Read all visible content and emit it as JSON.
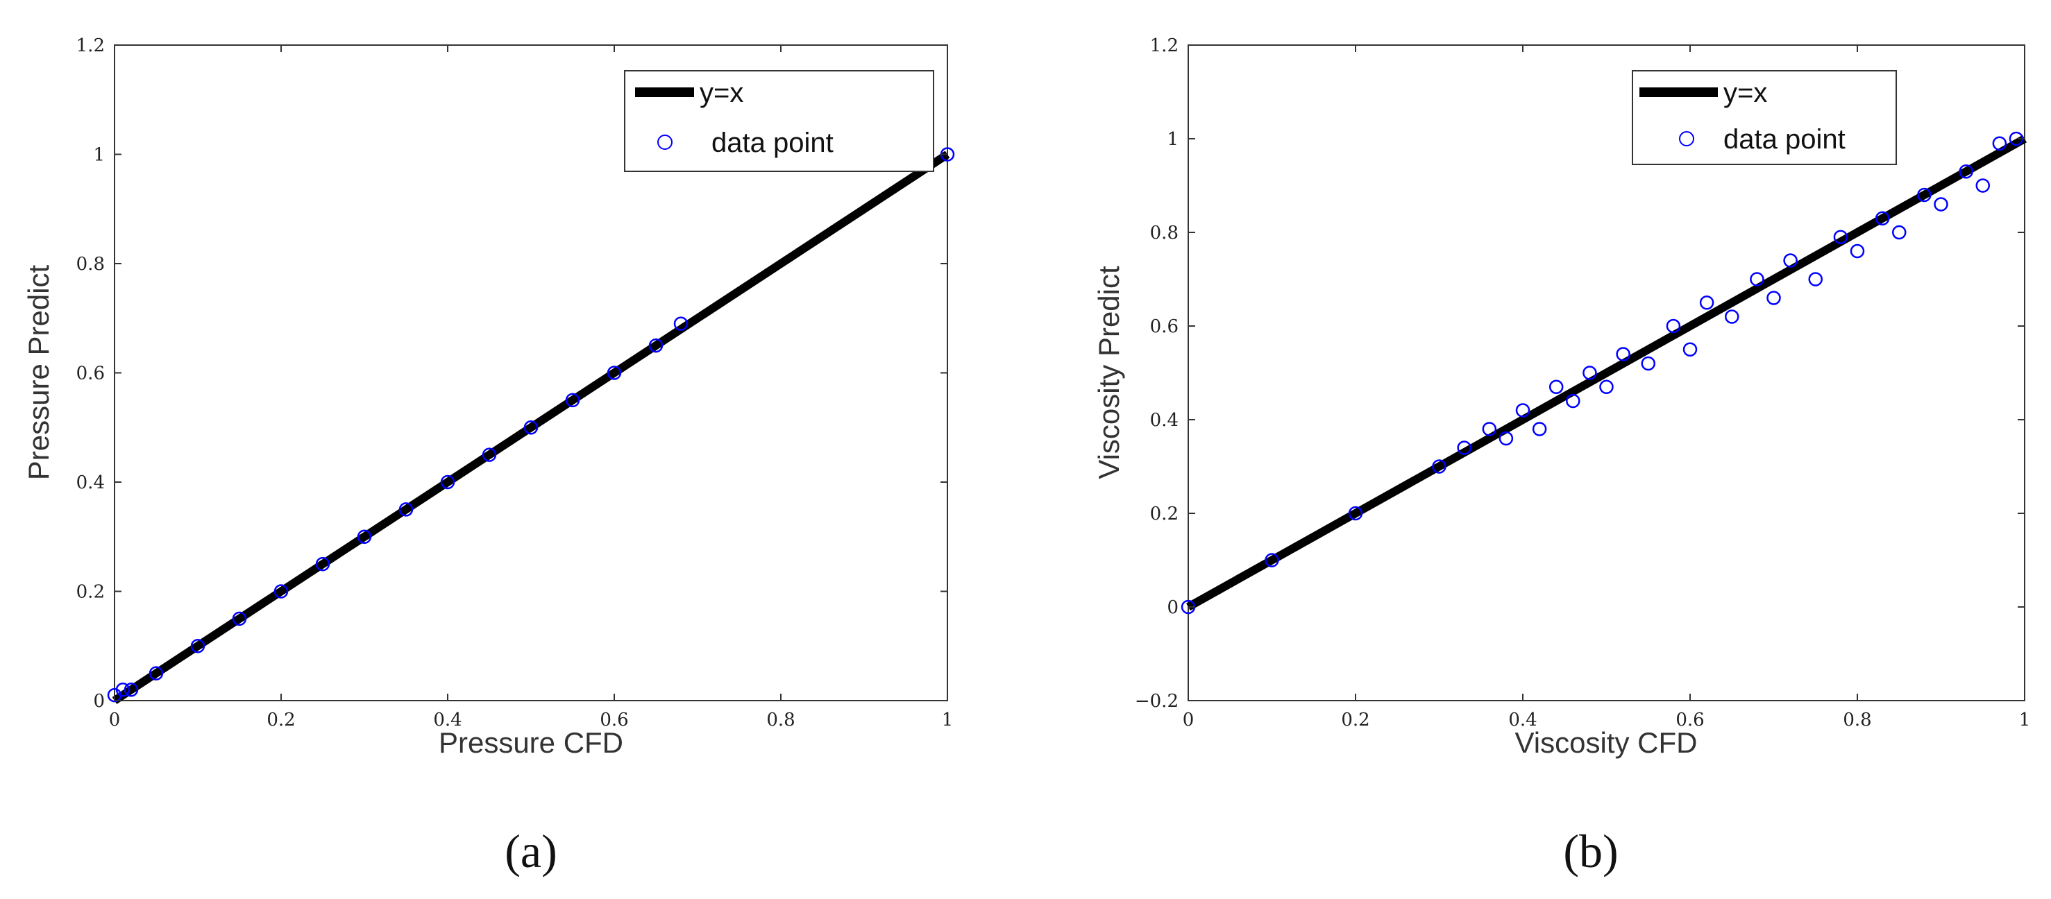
{
  "chart_data": [
    {
      "type": "scatter",
      "panel_label": "(a)",
      "xlabel": "Pressure CFD",
      "ylabel": "Pressure Predict",
      "xlim": [
        0,
        1
      ],
      "ylim": [
        0,
        1.2
      ],
      "xticks": [
        0,
        0.2,
        0.4,
        0.6,
        0.8,
        1
      ],
      "yticks": [
        0,
        0.2,
        0.4,
        0.6,
        0.8,
        1,
        1.2
      ],
      "xtick_labels": [
        "0",
        "0.2",
        "0.4",
        "0.6",
        "0.8",
        "1"
      ],
      "ytick_labels": [
        "0",
        "0.2",
        "0.4",
        "0.6",
        "0.8",
        "1",
        "1.2"
      ],
      "grid": false,
      "legend_position": "top-right",
      "series": [
        {
          "name": "y=x",
          "kind": "line",
          "color": "#000000",
          "x": [
            0,
            1
          ],
          "y": [
            0,
            1
          ]
        },
        {
          "name": "data point",
          "kind": "markers",
          "color": "#0000ff",
          "x": [
            0,
            0.01,
            0.02,
            0.05,
            0.1,
            0.15,
            0.2,
            0.25,
            0.3,
            0.35,
            0.4,
            0.45,
            0.5,
            0.55,
            0.6,
            0.65,
            0.68,
            1.0
          ],
          "y": [
            0.01,
            0.02,
            0.02,
            0.05,
            0.1,
            0.15,
            0.2,
            0.25,
            0.3,
            0.35,
            0.4,
            0.45,
            0.5,
            0.55,
            0.6,
            0.65,
            0.69,
            1.0
          ]
        }
      ]
    },
    {
      "type": "scatter",
      "panel_label": "(b)",
      "xlabel": "Viscosity CFD",
      "ylabel": "Viscosity Predict",
      "xlim": [
        0,
        1
      ],
      "ylim": [
        -0.2,
        1.2
      ],
      "xticks": [
        0,
        0.2,
        0.4,
        0.6,
        0.8,
        1
      ],
      "yticks": [
        -0.2,
        0,
        0.2,
        0.4,
        0.6,
        0.8,
        1,
        1.2
      ],
      "xtick_labels": [
        "0",
        "0.2",
        "0.4",
        "0.6",
        "0.8",
        "1"
      ],
      "ytick_labels": [
        "−0.2",
        "0",
        "0.2",
        "0.4",
        "0.6",
        "0.8",
        "1",
        "1.2"
      ],
      "grid": false,
      "legend_position": "top-right",
      "series": [
        {
          "name": "y=x",
          "kind": "line",
          "color": "#000000",
          "x": [
            0,
            1
          ],
          "y": [
            0,
            1
          ]
        },
        {
          "name": "data point",
          "kind": "markers",
          "color": "#0000ff",
          "x": [
            0,
            0.1,
            0.2,
            0.3,
            0.33,
            0.36,
            0.38,
            0.4,
            0.42,
            0.44,
            0.46,
            0.48,
            0.5,
            0.52,
            0.55,
            0.58,
            0.6,
            0.62,
            0.65,
            0.68,
            0.7,
            0.72,
            0.75,
            0.78,
            0.8,
            0.83,
            0.85,
            0.88,
            0.9,
            0.93,
            0.95,
            0.97,
            0.99
          ],
          "y": [
            0,
            0.1,
            0.2,
            0.3,
            0.34,
            0.38,
            0.36,
            0.42,
            0.38,
            0.47,
            0.44,
            0.5,
            0.47,
            0.54,
            0.52,
            0.6,
            0.55,
            0.65,
            0.62,
            0.7,
            0.66,
            0.74,
            0.7,
            0.79,
            0.76,
            0.83,
            0.8,
            0.88,
            0.86,
            0.93,
            0.9,
            0.99,
            1.0
          ]
        }
      ]
    }
  ]
}
